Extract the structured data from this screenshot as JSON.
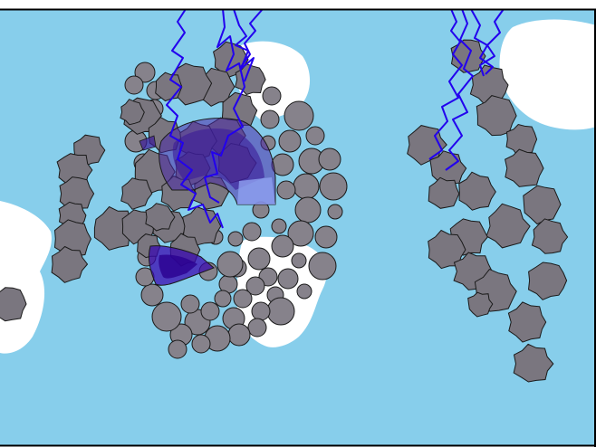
{
  "scene": {
    "colors": {
      "water": "#87ceeb",
      "frame": "#000000",
      "cloud": "#ffffff",
      "rock_fill": "#7a767f",
      "rock_stroke": "#1a1a1a",
      "bubble_fill": "#86828b",
      "bolt": "#2200ee",
      "shield_fill": "#4a2aa8",
      "shield_light": "#8fa0f0"
    },
    "objects": [
      "cloud-left",
      "cloud-top-middle",
      "cloud-bottom-middle",
      "cloud-top-right",
      "rock-chain-left",
      "rock-chain-center",
      "rock-chain-right",
      "bubble-cluster-center",
      "energy-shield-upper",
      "energy-shield-lower",
      "lightning-bolts"
    ]
  }
}
